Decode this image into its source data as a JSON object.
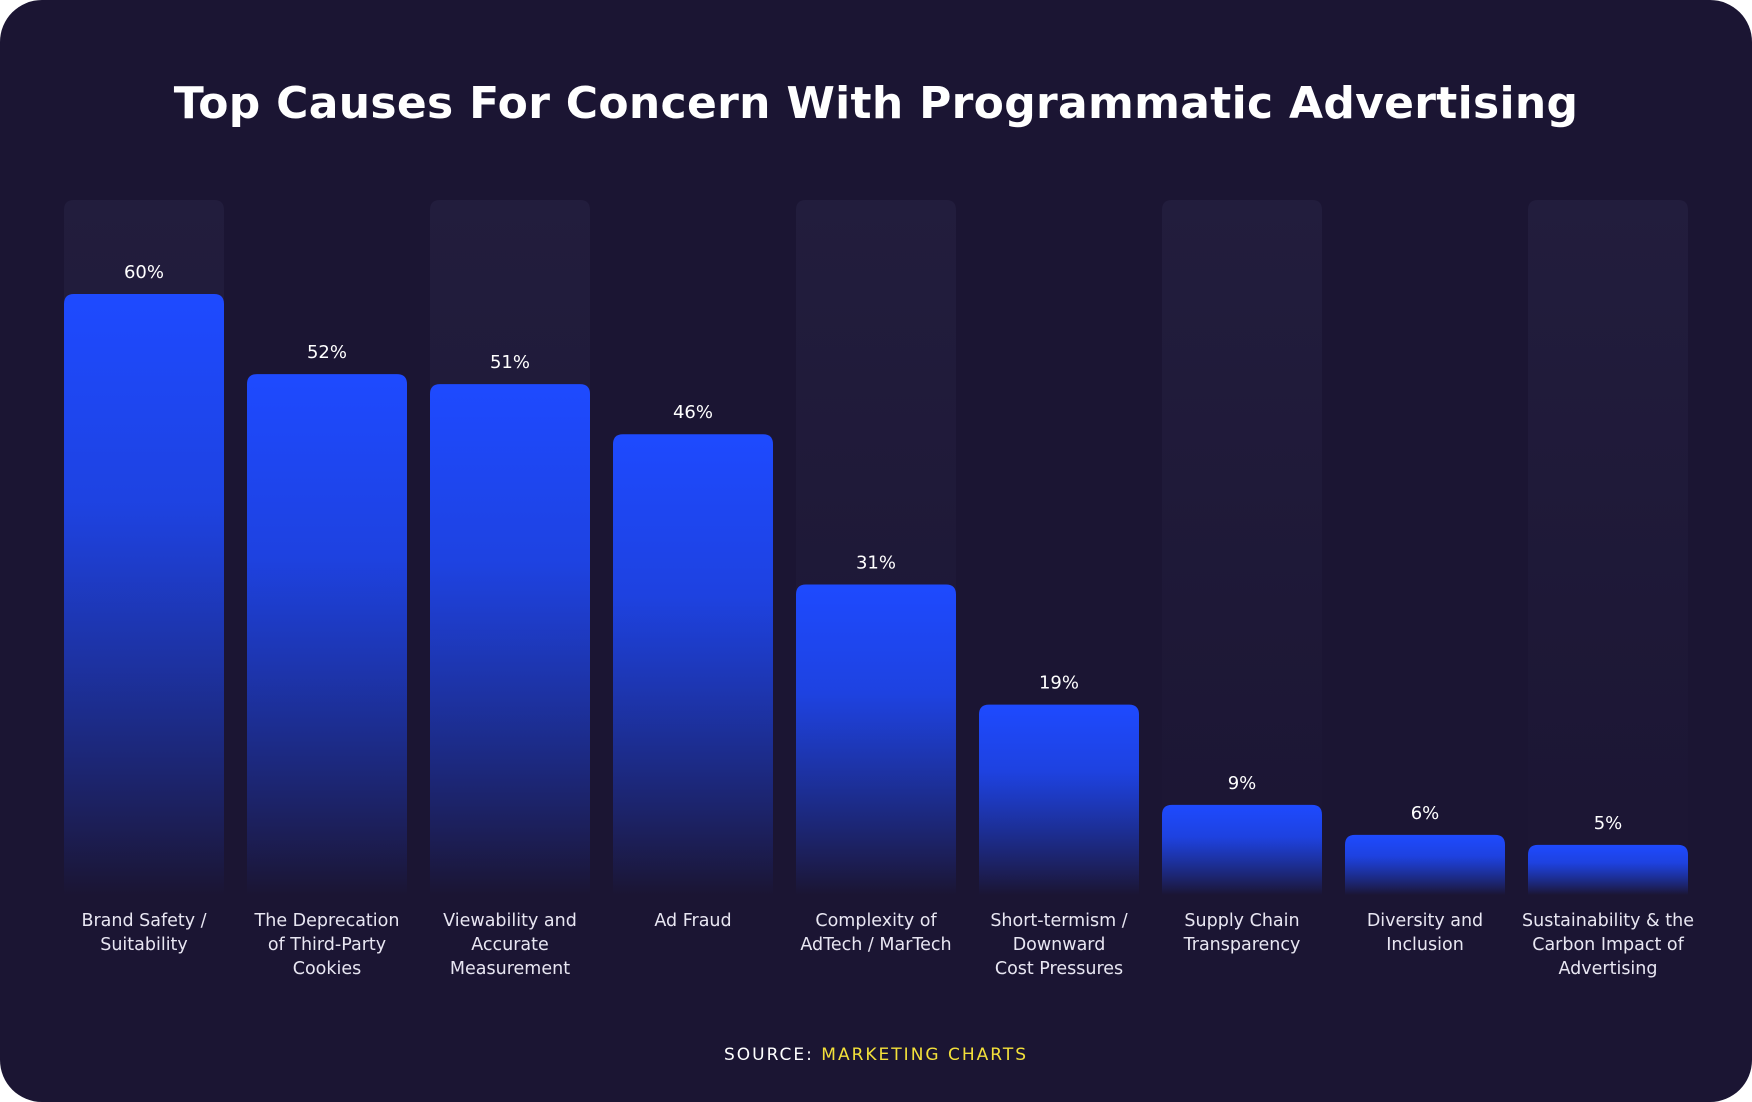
{
  "title": "Top Causes For Concern With Programmatic Advertising",
  "source": {
    "prefix": "SOURCE:",
    "name": "MARKETING CHARTS"
  },
  "colors": {
    "background": "#1b1533",
    "bar_top": "#1e4aff",
    "bar_bottom": "#1b1533",
    "track": "#221d3d",
    "source_accent": "#f3e03a"
  },
  "chart_data": {
    "type": "bar",
    "title": "Top Causes For Concern With Programmatic Advertising",
    "categories": [
      [
        "Brand Safety /",
        "Suitability"
      ],
      [
        "The Deprecation",
        "of Third-Party",
        "Cookies"
      ],
      [
        "Viewability and",
        "Accurate",
        "Measurement"
      ],
      [
        "Ad Fraud"
      ],
      [
        "Complexity of",
        "AdTech / MarTech"
      ],
      [
        "Short-termism /",
        "Downward",
        "Cost Pressures"
      ],
      [
        "Supply Chain",
        "Transparency"
      ],
      [
        "Diversity and",
        "Inclusion"
      ],
      [
        "Sustainability & the",
        "Carbon Impact of",
        "Advertising"
      ]
    ],
    "values": [
      60,
      52,
      51,
      46,
      31,
      19,
      9,
      6,
      5
    ],
    "value_labels": [
      "60%",
      "52%",
      "51%",
      "46%",
      "31%",
      "19%",
      "9%",
      "6%",
      "5%"
    ],
    "unit": "%",
    "background_track_on": [
      true,
      false,
      true,
      false,
      true,
      false,
      true,
      false,
      true
    ],
    "grid": false,
    "legend": "none"
  }
}
